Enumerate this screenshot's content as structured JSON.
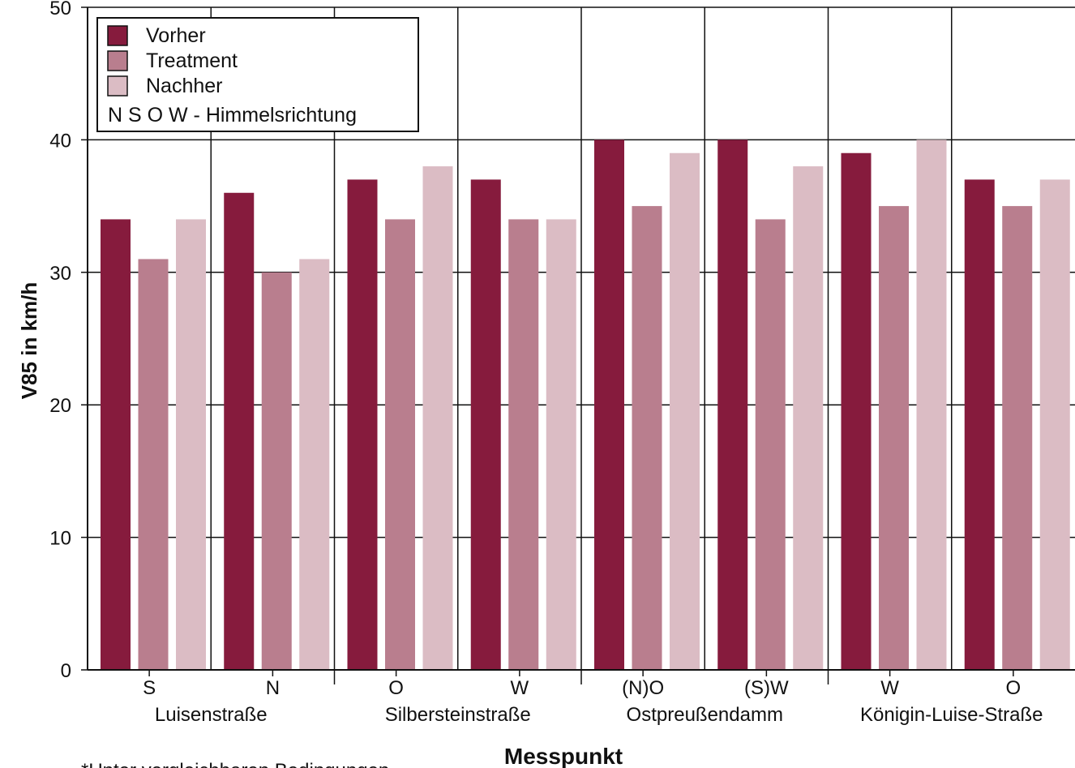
{
  "chart_data": {
    "type": "bar",
    "categories": [
      "S",
      "N",
      "O",
      "W",
      "(N)O",
      "(S)W",
      "W",
      "O"
    ],
    "groups": [
      "Luisenstraße",
      "Silbersteinstraße",
      "Ostpreußendamm",
      "Königin-Luise-Straße"
    ],
    "series": [
      {
        "name": "Vorher",
        "color": "#861b3d",
        "values": [
          34,
          36,
          37,
          37,
          40,
          40,
          39,
          37
        ]
      },
      {
        "name": "Treatment",
        "color": "#b97e8e",
        "values": [
          31,
          30,
          34,
          34,
          35,
          34,
          35,
          35
        ]
      },
      {
        "name": "Nachher",
        "color": "#dbbcc4",
        "values": [
          34,
          31,
          38,
          34,
          39,
          38,
          40,
          37
        ]
      }
    ],
    "legend_note": "N S O W - Himmelsrichtung",
    "xlabel": "Messpunkt",
    "ylabel": "V85 in km/h",
    "ylim": [
      0,
      50
    ],
    "yticks": [
      0,
      10,
      20,
      30,
      40,
      50
    ],
    "grid": true,
    "legend_position": "top-left",
    "footnote": "*Unter vergleichbaren Bedingungen"
  }
}
